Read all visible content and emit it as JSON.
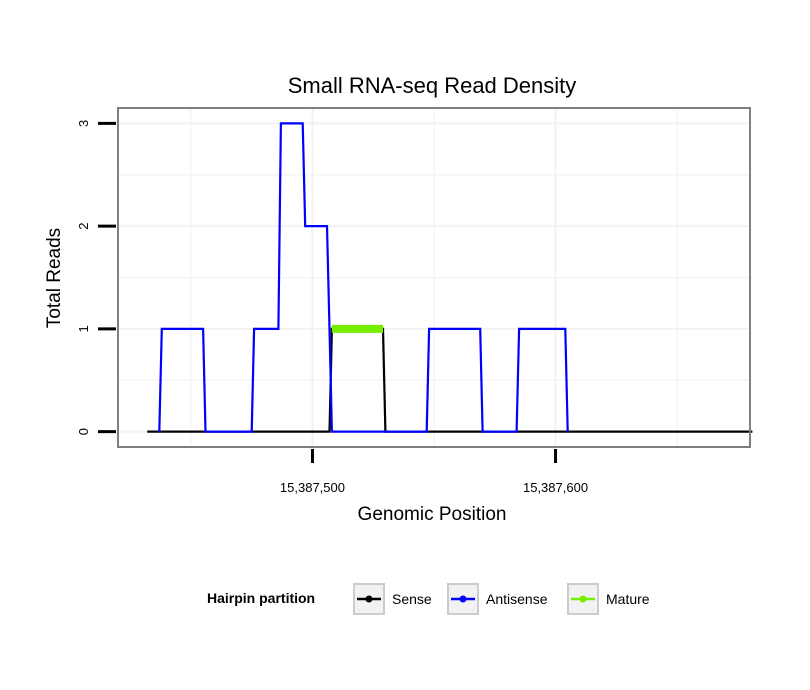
{
  "chart_data": {
    "type": "line",
    "step": true,
    "title": "Small RNA-seq Read Density",
    "xlabel": "Genomic Position",
    "ylabel": "Total Reads",
    "xlim": [
      15387420,
      15387680
    ],
    "ylim": [
      -0.15,
      3.15
    ],
    "x_ticks": [
      15387500,
      15387600
    ],
    "x_tick_labels": [
      "15,387,500",
      "15,387,600"
    ],
    "y_ticks": [
      0,
      1,
      2,
      3
    ],
    "y_tick_labels": [
      "0",
      "1",
      "2",
      "3"
    ],
    "grid": true,
    "legend": {
      "title": "Hairpin partition",
      "position": "bottom",
      "entries": [
        {
          "name": "Sense",
          "color": "#000000"
        },
        {
          "name": "Antisense",
          "color": "#0000ff"
        },
        {
          "name": "Mature",
          "color": "#76ee00"
        }
      ]
    },
    "series": [
      {
        "name": "Sense",
        "color": "#000000",
        "x": [
          15387432,
          15387507,
          15387508,
          15387529,
          15387530,
          15387681
        ],
        "y": [
          0,
          0,
          1,
          1,
          0,
          0
        ]
      },
      {
        "name": "Antisense",
        "color": "#0000ff",
        "x": [
          15387437,
          15387438,
          15387455,
          15387456,
          15387475,
          15387476,
          15387486,
          15387487,
          15387496,
          15387497,
          15387506,
          15387507,
          15387508,
          15387509,
          15387529,
          15387530,
          15387547,
          15387548,
          15387569,
          15387570,
          15387584,
          15387585,
          15387604,
          15387605
        ],
        "y": [
          0,
          1,
          1,
          0,
          0,
          1,
          1,
          3,
          3,
          2,
          2,
          1,
          0,
          0,
          0,
          0,
          0,
          1,
          1,
          0,
          0,
          1,
          1,
          0
        ]
      },
      {
        "name": "Mature",
        "color": "#76ee00",
        "x": [
          15387508,
          15387529
        ],
        "y": [
          1,
          1
        ]
      }
    ]
  }
}
